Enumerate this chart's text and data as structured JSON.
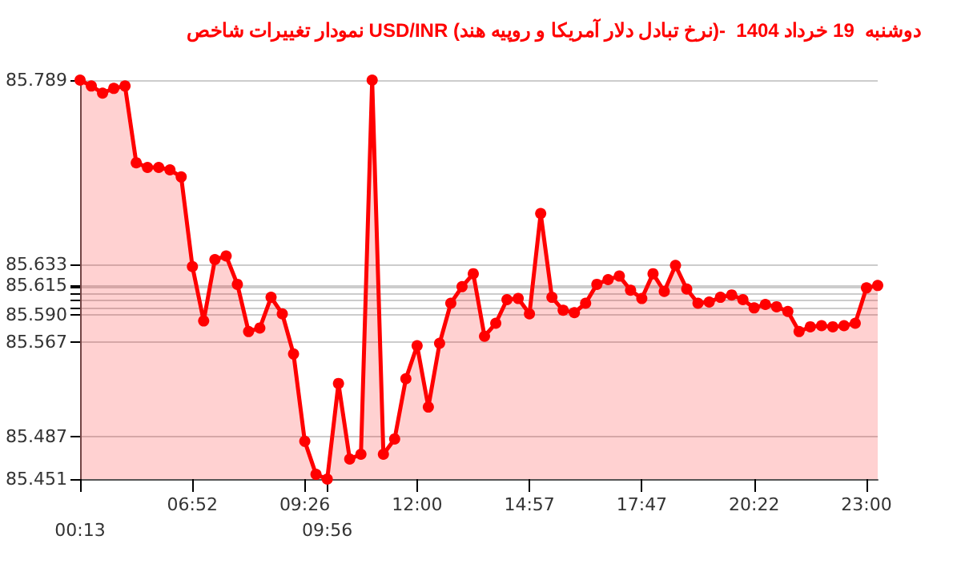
{
  "chart_data": {
    "type": "area",
    "title": "نمودار تغییرات شاخص USD/INR (نرخ تبادل دلار آمریکا و روپیه هند)-  دوشنبه  19 خرداد 1404",
    "categories": [
      "00:13",
      null,
      null,
      null,
      null,
      null,
      null,
      null,
      null,
      null,
      "06:52",
      null,
      null,
      null,
      null,
      null,
      null,
      null,
      null,
      null,
      "09:26",
      null,
      "09:56",
      null,
      null,
      null,
      null,
      null,
      null,
      null,
      "12:00",
      null,
      null,
      null,
      null,
      null,
      null,
      null,
      null,
      null,
      "14:57",
      null,
      null,
      null,
      null,
      null,
      null,
      null,
      null,
      null,
      "17:47",
      null,
      null,
      null,
      null,
      null,
      null,
      null,
      null,
      null,
      "20:22",
      null,
      null,
      null,
      null,
      null,
      null,
      null,
      null,
      null,
      "23:00",
      null
    ],
    "series": [
      {
        "color": "#ff0000",
        "values": [
          85.789,
          85.784,
          85.778,
          85.782,
          85.784,
          85.719,
          85.715,
          85.715,
          85.713,
          85.707,
          85.631,
          85.585,
          85.637,
          85.64,
          85.616,
          85.576,
          85.579,
          85.605,
          85.591,
          85.557,
          85.483,
          85.455,
          85.451,
          85.532,
          85.468,
          85.472,
          85.789,
          85.472,
          85.485,
          85.536,
          85.564,
          85.512,
          85.566,
          85.6,
          85.614,
          85.625,
          85.572,
          85.583,
          85.603,
          85.604,
          85.591,
          85.676,
          85.605,
          85.594,
          85.592,
          85.6,
          85.616,
          85.62,
          85.623,
          85.611,
          85.604,
          85.625,
          85.61,
          85.632,
          85.612,
          85.6,
          85.601,
          85.605,
          85.607,
          85.603,
          85.596,
          85.599,
          85.597,
          85.593,
          85.576,
          85.58,
          85.581,
          85.58,
          85.581,
          85.583,
          85.613,
          85.615
        ]
      }
    ],
    "ylim": [
      85.451,
      85.789
    ],
    "yticks": [
      85.451,
      85.487,
      85.567,
      {
        "value": 85.59,
        "label": "85.590"
      },
      {
        "value": 85.596,
        "label": null
      },
      {
        "value": 85.603,
        "label": null
      },
      {
        "value": 85.608,
        "label": null
      },
      {
        "value": 85.613,
        "label": null
      },
      85.615,
      85.633,
      85.789
    ],
    "grid": "y",
    "marker": "circle",
    "line_style": "solid"
  }
}
